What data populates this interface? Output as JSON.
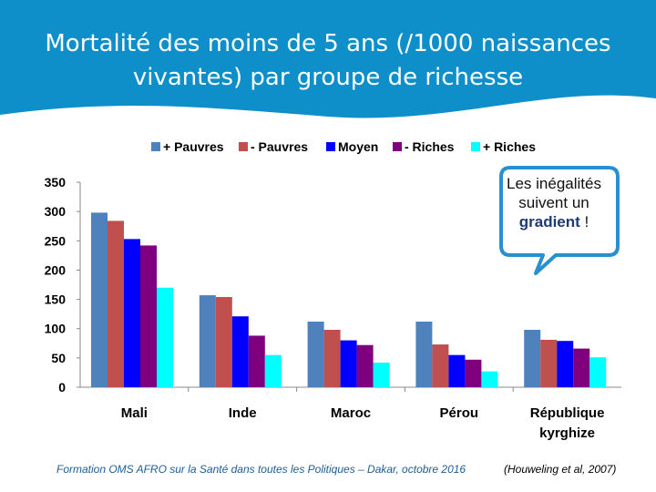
{
  "title": {
    "line1": "Mortalité des moins de 5 ans (/1000 naissances",
    "line2": "vivantes) par groupe de richesse"
  },
  "callout": {
    "line1": "Les inégalités",
    "line2": "suivent un",
    "emphasis": "gradient",
    "suffix": " !"
  },
  "footer": {
    "left": "Formation OMS AFRO sur la Santé dans toutes les Politiques – Dakar, octobre 2016",
    "right": "(Houweling et al, 2007)"
  },
  "colors": {
    "banner": "#0f8fc9",
    "series": [
      "#4f81bd",
      "#c0504d",
      "#0000ff",
      "#7f007f",
      "#00ffff"
    ]
  },
  "chart_data": {
    "type": "bar",
    "title": "Mortalité des moins de 5 ans (/1000 naissances vivantes) par groupe de richesse",
    "xlabel": "",
    "ylabel": "",
    "ylim": [
      0,
      350
    ],
    "yticks": [
      0,
      50,
      100,
      150,
      200,
      250,
      300,
      350
    ],
    "categories": [
      [
        "Mali"
      ],
      [
        "Inde"
      ],
      [
        "Maroc"
      ],
      [
        "Pérou"
      ],
      [
        "République",
        "kyrghize"
      ]
    ],
    "series": [
      {
        "name": "+ Pauvres",
        "values": [
          298,
          157,
          112,
          112,
          98
        ]
      },
      {
        "name": "- Pauvres",
        "values": [
          284,
          154,
          98,
          73,
          81
        ]
      },
      {
        "name": "Moyen",
        "values": [
          253,
          121,
          80,
          55,
          79
        ]
      },
      {
        "name": "- Riches",
        "values": [
          242,
          88,
          72,
          47,
          66
        ]
      },
      {
        "name": "+ Riches",
        "values": [
          170,
          55,
          42,
          27,
          51
        ]
      }
    ],
    "legend_position": "top"
  }
}
